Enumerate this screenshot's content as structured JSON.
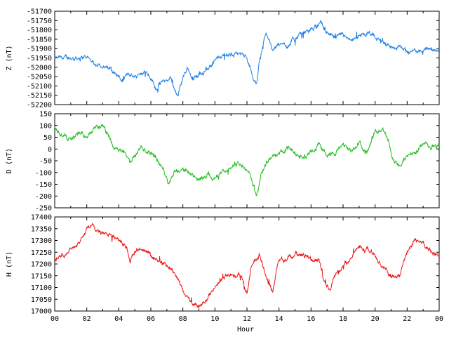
{
  "chart_data": [
    {
      "type": "line",
      "ylabel": "Z (nT)",
      "ylim": [
        -52200,
        -51700
      ],
      "yticks": [
        -51700,
        -51750,
        -51800,
        -51850,
        -51900,
        -51950,
        -52000,
        -52050,
        -52100,
        -52150,
        -52200
      ],
      "color": "#1e7fe6",
      "xlim": [
        0,
        24
      ],
      "keypoints": [
        [
          0,
          -51955
        ],
        [
          1,
          -51950
        ],
        [
          2,
          -51945
        ],
        [
          2.5,
          -51980
        ],
        [
          3,
          -51990
        ],
        [
          3.8,
          -52030
        ],
        [
          4.3,
          -52080
        ],
        [
          4.6,
          -52030
        ],
        [
          5,
          -52050
        ],
        [
          5.6,
          -52010
        ],
        [
          6,
          -52050
        ],
        [
          6.3,
          -52110
        ],
        [
          6.7,
          -52080
        ],
        [
          7.2,
          -52060
        ],
        [
          7.7,
          -52150
        ],
        [
          8,
          -52050
        ],
        [
          8.3,
          -52000
        ],
        [
          8.6,
          -52060
        ],
        [
          9,
          -52040
        ],
        [
          9.5,
          -52020
        ],
        [
          10,
          -51960
        ],
        [
          10.5,
          -51940
        ],
        [
          11,
          -51930
        ],
        [
          11.5,
          -51920
        ],
        [
          12,
          -51950
        ],
        [
          12.4,
          -52050
        ],
        [
          12.6,
          -52100
        ],
        [
          12.8,
          -51950
        ],
        [
          13.2,
          -51820
        ],
        [
          13.6,
          -51900
        ],
        [
          14,
          -51880
        ],
        [
          14.5,
          -51880
        ],
        [
          15,
          -51850
        ],
        [
          15.5,
          -51820
        ],
        [
          16,
          -51800
        ],
        [
          16.6,
          -51770
        ],
        [
          17,
          -51810
        ],
        [
          17.5,
          -51850
        ],
        [
          18,
          -51830
        ],
        [
          18.5,
          -51870
        ],
        [
          19,
          -51840
        ],
        [
          19.5,
          -51820
        ],
        [
          20,
          -51850
        ],
        [
          20.5,
          -51860
        ],
        [
          21,
          -51900
        ],
        [
          21.5,
          -51890
        ],
        [
          22,
          -51920
        ],
        [
          22.5,
          -51910
        ],
        [
          23,
          -51905
        ],
        [
          24,
          -51910
        ]
      ]
    },
    {
      "type": "line",
      "ylabel": "D (nT)",
      "ylim": [
        -250,
        150
      ],
      "yticks": [
        150,
        100,
        50,
        0,
        -50,
        -100,
        -150,
        -200,
        -250
      ],
      "color": "#22bb22",
      "xlim": [
        0,
        24
      ],
      "keypoints": [
        [
          0,
          95
        ],
        [
          0.5,
          60
        ],
        [
          1,
          40
        ],
        [
          1.5,
          70
        ],
        [
          2,
          50
        ],
        [
          2.5,
          85
        ],
        [
          3,
          95
        ],
        [
          3.4,
          60
        ],
        [
          3.7,
          10
        ],
        [
          4.3,
          -10
        ],
        [
          4.7,
          -60
        ],
        [
          5.3,
          0
        ],
        [
          5.8,
          -10
        ],
        [
          6.3,
          -30
        ],
        [
          6.8,
          -90
        ],
        [
          7.1,
          -150
        ],
        [
          7.5,
          -90
        ],
        [
          8.2,
          -90
        ],
        [
          8.6,
          -110
        ],
        [
          9,
          -130
        ],
        [
          9.6,
          -100
        ],
        [
          10,
          -130
        ],
        [
          10.5,
          -100
        ],
        [
          11,
          -80
        ],
        [
          11.5,
          -60
        ],
        [
          12,
          -80
        ],
        [
          12.4,
          -150
        ],
        [
          12.6,
          -210
        ],
        [
          12.9,
          -100
        ],
        [
          13.4,
          -40
        ],
        [
          14,
          -20
        ],
        [
          14.5,
          10
        ],
        [
          15,
          -20
        ],
        [
          15.5,
          -40
        ],
        [
          16,
          -10
        ],
        [
          16.5,
          20
        ],
        [
          17,
          -20
        ],
        [
          17.5,
          -20
        ],
        [
          18,
          20
        ],
        [
          18.5,
          -10
        ],
        [
          19,
          30
        ],
        [
          19.5,
          -10
        ],
        [
          20,
          90
        ],
        [
          20.5,
          80
        ],
        [
          20.8,
          30
        ],
        [
          21.2,
          -50
        ],
        [
          21.6,
          -70
        ],
        [
          22,
          -30
        ],
        [
          22.5,
          -20
        ],
        [
          23,
          30
        ],
        [
          23.5,
          10
        ],
        [
          24,
          20
        ]
      ]
    },
    {
      "type": "line",
      "ylabel": "H (nT)",
      "xlabel": "Hour",
      "ylim": [
        17000,
        17400
      ],
      "yticks": [
        17400,
        17350,
        17300,
        17250,
        17200,
        17150,
        17100,
        17050,
        17000
      ],
      "color": "#ee1111",
      "xlim": [
        0,
        24
      ],
      "xticks": [
        "00",
        "02",
        "04",
        "06",
        "08",
        "10",
        "12",
        "14",
        "16",
        "18",
        "20",
        "22",
        "00"
      ],
      "keypoints": [
        [
          0,
          17220
        ],
        [
          0.5,
          17240
        ],
        [
          1,
          17270
        ],
        [
          1.5,
          17290
        ],
        [
          2,
          17350
        ],
        [
          2.5,
          17360
        ],
        [
          3,
          17330
        ],
        [
          3.5,
          17330
        ],
        [
          4,
          17300
        ],
        [
          4.5,
          17270
        ],
        [
          4.7,
          17200
        ],
        [
          5,
          17250
        ],
        [
          5.5,
          17260
        ],
        [
          6,
          17230
        ],
        [
          6.5,
          17210
        ],
        [
          7,
          17190
        ],
        [
          7.5,
          17160
        ],
        [
          8,
          17080
        ],
        [
          8.5,
          17050
        ],
        [
          9,
          17020
        ],
        [
          9.5,
          17050
        ],
        [
          10,
          17100
        ],
        [
          10.5,
          17140
        ],
        [
          11,
          17150
        ],
        [
          11.5,
          17150
        ],
        [
          12,
          17080
        ],
        [
          12.3,
          17200
        ],
        [
          12.8,
          17240
        ],
        [
          13.2,
          17150
        ],
        [
          13.6,
          17090
        ],
        [
          14,
          17220
        ],
        [
          14.5,
          17220
        ],
        [
          15,
          17240
        ],
        [
          15.5,
          17240
        ],
        [
          16,
          17220
        ],
        [
          16.5,
          17220
        ],
        [
          16.8,
          17130
        ],
        [
          17.2,
          17090
        ],
        [
          17.5,
          17150
        ],
        [
          18,
          17190
        ],
        [
          18.5,
          17230
        ],
        [
          19,
          17270
        ],
        [
          19.5,
          17260
        ],
        [
          20,
          17240
        ],
        [
          20.5,
          17190
        ],
        [
          21,
          17140
        ],
        [
          21.5,
          17150
        ],
        [
          22,
          17250
        ],
        [
          22.5,
          17300
        ],
        [
          23,
          17290
        ],
        [
          23.5,
          17250
        ],
        [
          24,
          17240
        ]
      ]
    }
  ]
}
